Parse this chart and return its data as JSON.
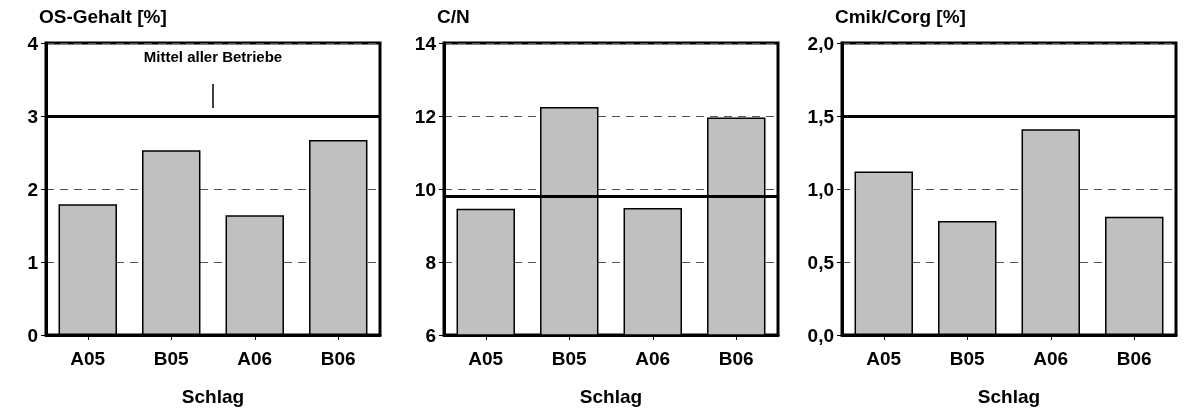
{
  "chart_data": [
    {
      "type": "bar",
      "title": "OS-Gehalt [%]",
      "xlabel": "Schlag",
      "categories": [
        "A05",
        "B05",
        "A06",
        "B06"
      ],
      "values": [
        1.79,
        2.53,
        1.64,
        2.67
      ],
      "color": "#c0c0c0",
      "ylim": [
        0,
        4
      ],
      "yticks": [
        0,
        1,
        2,
        3,
        4
      ],
      "grid": "y",
      "ref_lines": [
        {
          "axis": "y",
          "value": 3,
          "label": "Mittel aller Betriebe"
        }
      ]
    },
    {
      "type": "bar",
      "title": "C/N",
      "xlabel": "Schlag",
      "categories": [
        "A05",
        "B05",
        "A06",
        "B06"
      ],
      "values": [
        9.46,
        12.25,
        9.48,
        11.96
      ],
      "color": "#c0c0c0",
      "ylim": [
        6,
        14
      ],
      "yticks": [
        6,
        8,
        10,
        12,
        14
      ],
      "grid": "y",
      "ref_lines": [
        {
          "axis": "y",
          "value": 9.8
        }
      ]
    },
    {
      "type": "bar",
      "title": "Cmik/Corg [%]",
      "xlabel": "Schlag",
      "categories": [
        "A05",
        "B05",
        "A06",
        "B06"
      ],
      "values": [
        1.12,
        0.78,
        1.41,
        0.81
      ],
      "color": "#c0c0c0",
      "ylim": [
        0,
        2
      ],
      "yticks": [
        {
          "value": 0,
          "label": "0,0"
        },
        {
          "value": 0.5,
          "label": "0,5"
        },
        {
          "value": 1,
          "label": "1,0"
        },
        {
          "value": 1.5,
          "label": "1,5"
        },
        {
          "value": 2,
          "label": "2,0"
        }
      ],
      "grid": "y",
      "ref_lines": [
        {
          "axis": "y",
          "value": 1.5
        }
      ]
    }
  ]
}
